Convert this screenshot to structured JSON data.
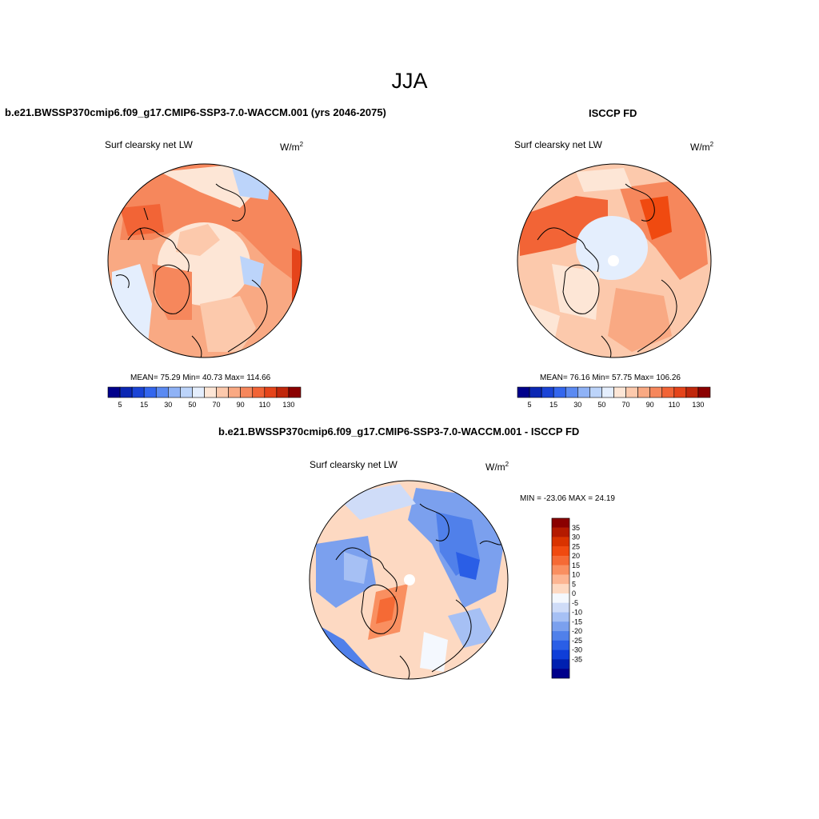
{
  "title": "JJA",
  "left_panel": {
    "title": "b.e21.BWSSP370cmip6.f09_g17.CMIP6-SSP3-7.0-WACCM.001 (yrs 2046-2075)",
    "variable": "Surf clearsky net LW",
    "units_base": "W/m",
    "units_exp": "2",
    "stats": "MEAN=  75.29  Min=  40.73  Max= 114.66"
  },
  "right_panel": {
    "title": "ISCCP FD",
    "variable": "Surf clearsky net LW",
    "units_base": "W/m",
    "units_exp": "2",
    "stats": "MEAN=  76.16  Min=  57.75  Max= 106.26"
  },
  "diff_panel": {
    "title": "b.e21.BWSSP370cmip6.f09_g17.CMIP6-SSP3-7.0-WACCM.001 - ISCCP FD",
    "variable": "Surf clearsky net LW",
    "units_base": "W/m",
    "units_exp": "2",
    "minmax": "MIN = -23.06 MAX =  24.19"
  },
  "chart_data": [
    {
      "type": "heatmap",
      "projection": "north polar stereographic",
      "title": "b.e21.BWSSP370cmip6.f09_g17.CMIP6-SSP3-7.0-WACCM.001 (yrs 2046-2075)",
      "variable": "Surf clearsky net LW",
      "units": "W/m2",
      "mean": 75.29,
      "min": 40.73,
      "max": 114.66,
      "colorbar": {
        "tick_labels": [
          "5",
          "15",
          "30",
          "50",
          "70",
          "90",
          "110",
          "130"
        ],
        "colors": [
          "#00008b",
          "#0b27b3",
          "#1a44d6",
          "#3366ee",
          "#5b8af2",
          "#8fb2f6",
          "#bcd4fa",
          "#e4eefd",
          "#fde6d6",
          "#fcc9ac",
          "#f9a983",
          "#f6875c",
          "#f26436",
          "#e5441a",
          "#c0270b",
          "#8b0000"
        ]
      }
    },
    {
      "type": "heatmap",
      "projection": "north polar stereographic",
      "title": "ISCCP FD",
      "variable": "Surf clearsky net LW",
      "units": "W/m2",
      "mean": 76.16,
      "min": 57.75,
      "max": 106.26,
      "colorbar": {
        "tick_labels": [
          "5",
          "15",
          "30",
          "50",
          "70",
          "90",
          "110",
          "130"
        ],
        "colors": [
          "#00008b",
          "#0b27b3",
          "#1a44d6",
          "#3366ee",
          "#5b8af2",
          "#8fb2f6",
          "#bcd4fa",
          "#e4eefd",
          "#fde6d6",
          "#fcc9ac",
          "#f9a983",
          "#f6875c",
          "#f26436",
          "#e5441a",
          "#c0270b",
          "#8b0000"
        ]
      }
    },
    {
      "type": "heatmap",
      "projection": "north polar stereographic",
      "title": "b.e21.BWSSP370cmip6.f09_g17.CMIP6-SSP3-7.0-WACCM.001 - ISCCP FD",
      "variable": "Surf clearsky net LW",
      "units": "W/m2",
      "min": -23.06,
      "max": 24.19,
      "colorbar": {
        "orientation": "vertical",
        "tick_labels": [
          "35",
          "30",
          "25",
          "20",
          "15",
          "10",
          "5",
          "0",
          "-5",
          "-10",
          "-15",
          "-20",
          "-25",
          "-30",
          "-35"
        ],
        "colors": [
          "#8b0000",
          "#b41a00",
          "#d93300",
          "#f04a10",
          "#f56a35",
          "#f98f60",
          "#fcb592",
          "#fdd9c2",
          "#f4f8fe",
          "#cfdcf8",
          "#a6c0f4",
          "#7ba0ee",
          "#5080ea",
          "#2a5ee6",
          "#0f3ed8",
          "#0020b0",
          "#00008b"
        ]
      }
    }
  ]
}
